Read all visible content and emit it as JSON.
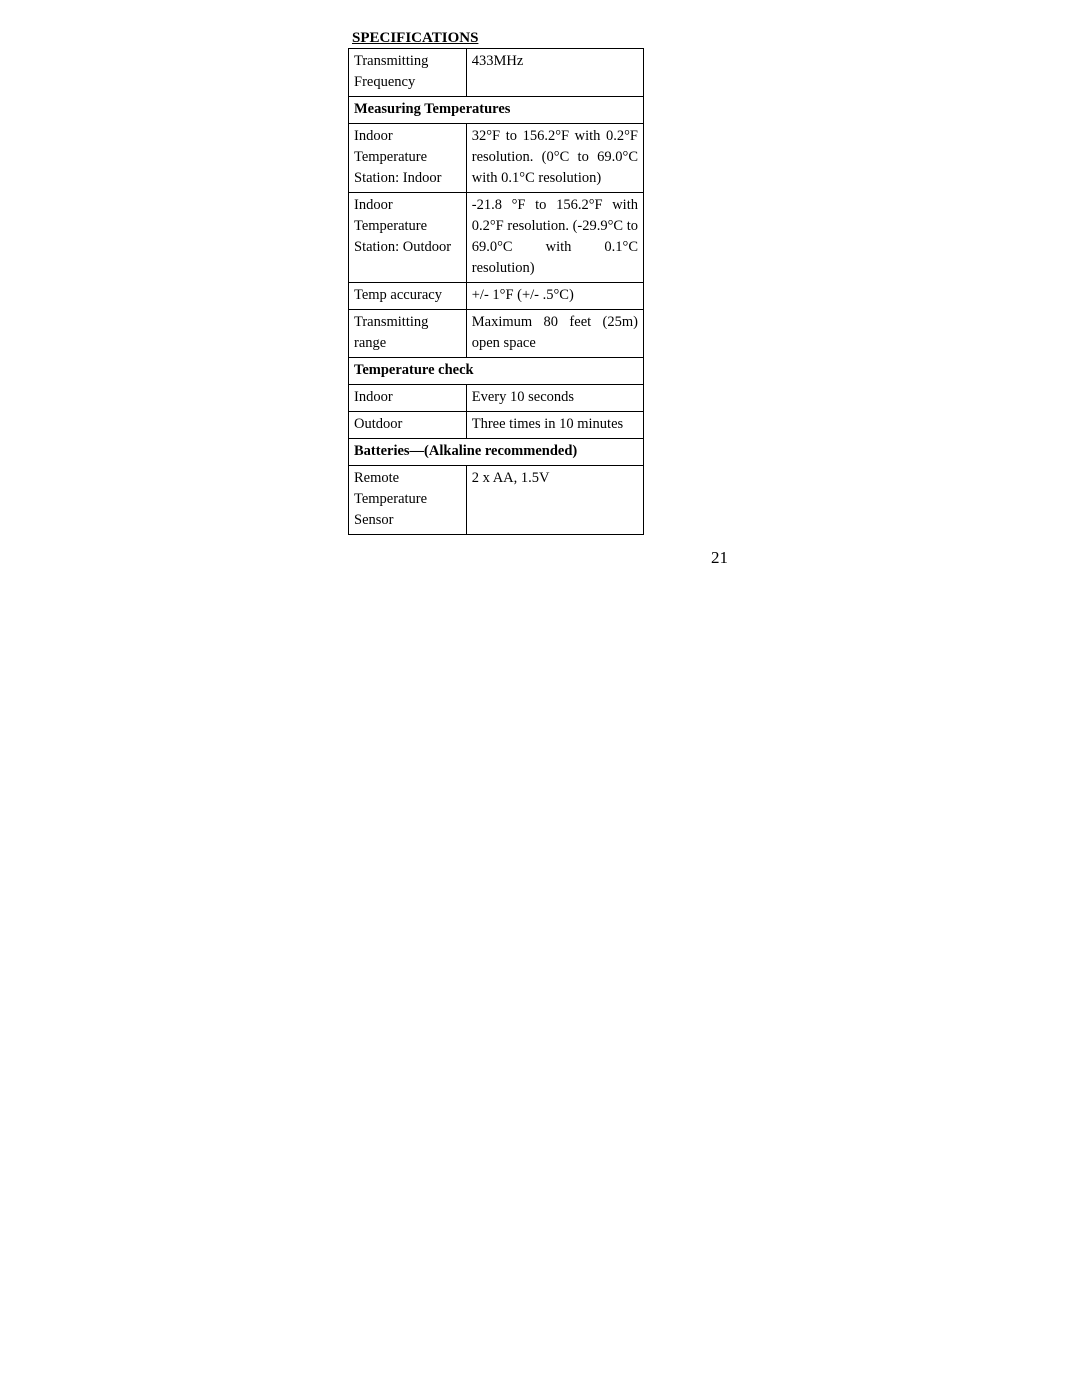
{
  "title": "SPECIFICATIONS",
  "page_number": "21",
  "table": {
    "rows": [
      {
        "type": "data",
        "label": "Transmitting Frequency",
        "value": "433MHz"
      },
      {
        "type": "section",
        "label": "Measuring Temperatures"
      },
      {
        "type": "data",
        "label": "Indoor Temperature Station: Indoor",
        "value": "32°F to 156.2°F with 0.2°F resolution.\n (0°C to 69.0°C with 0.1°C resolution)"
      },
      {
        "type": "data",
        "label": "Indoor Temperature Station: Outdoor",
        "value": "-21.8 °F to 156.2°F with 0.2°F resolution.\n(-29.9°C to 69.0°C with 0.1°C resolution)"
      },
      {
        "type": "data",
        "label": "Temp accuracy",
        "value": "+/- 1°F   (+/- .5°C)"
      },
      {
        "type": "data",
        "label": "Transmitting range",
        "value": "Maximum 80 feet (25m) open space"
      },
      {
        "type": "section",
        "label": "Temperature check"
      },
      {
        "type": "data",
        "label": "Indoor",
        "value": "Every 10 seconds"
      },
      {
        "type": "data",
        "label": "Outdoor",
        "value": "Three times in 10 minutes"
      },
      {
        "type": "section",
        "label": "Batteries—(Alkaline recommended)"
      },
      {
        "type": "data",
        "label": "Remote Temperature Sensor",
        "value": "2 x AA, 1.5V"
      }
    ]
  }
}
